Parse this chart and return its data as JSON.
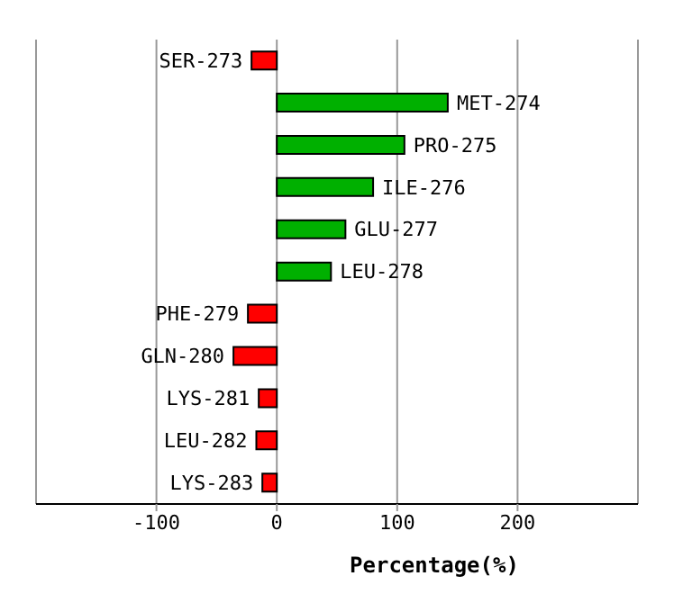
{
  "chart_data": {
    "type": "bar",
    "orientation": "horizontal",
    "xlabel": "Percentage(%)",
    "categories": [
      "SER-273",
      "MET-274",
      "PRO-275",
      "ILE-276",
      "GLU-277",
      "LEU-278",
      "PHE-279",
      "GLN-280",
      "LYS-281",
      "LEU-282",
      "LYS-283"
    ],
    "values": [
      -21,
      142,
      106,
      80,
      57,
      45,
      -24,
      -36,
      -15,
      -17,
      -12
    ],
    "colors": [
      "#ff0000",
      "#00b000",
      "#00b000",
      "#00b000",
      "#00b000",
      "#00b000",
      "#ff0000",
      "#ff0000",
      "#ff0000",
      "#ff0000",
      "#ff0000"
    ],
    "xlim": [
      -200,
      300
    ],
    "xticks": [
      -100,
      0,
      100,
      200
    ],
    "grid": "x"
  }
}
